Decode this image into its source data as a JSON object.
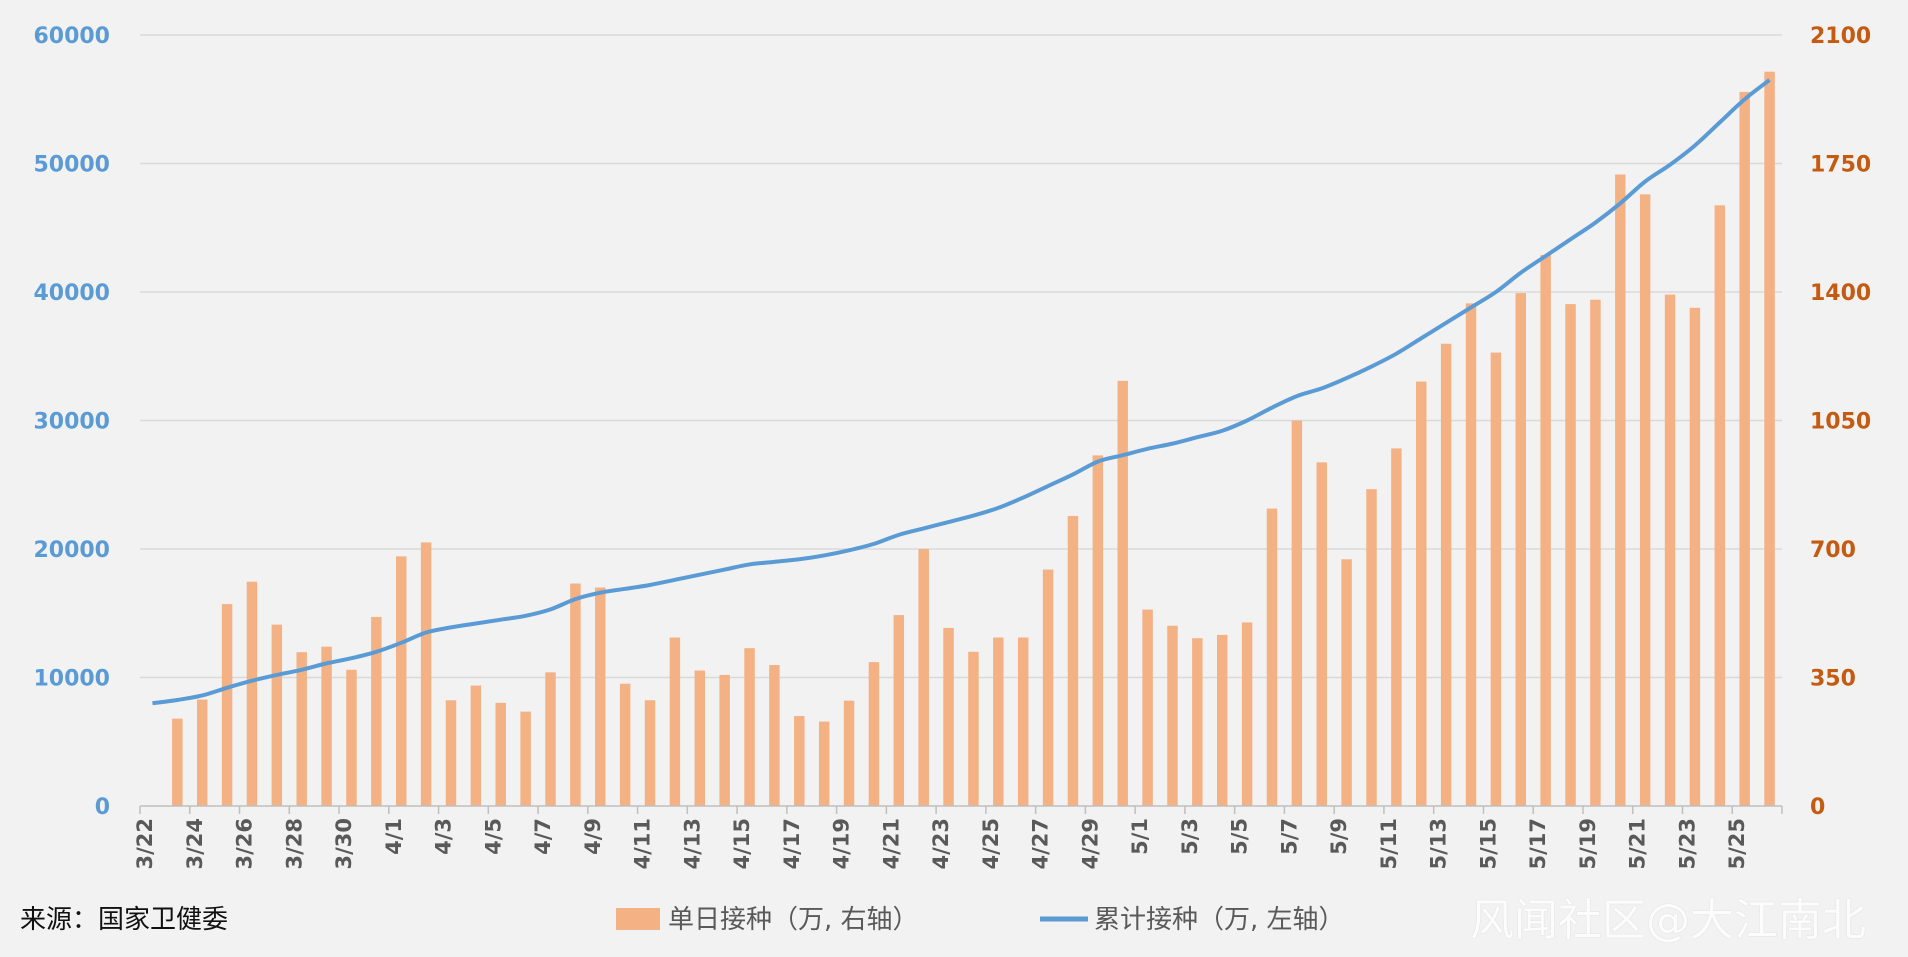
{
  "chart_data": {
    "type": "bar+line",
    "categories": [
      "3/22",
      "3/23",
      "3/24",
      "3/25",
      "3/26",
      "3/27",
      "3/28",
      "3/29",
      "3/30",
      "3/31",
      "4/1",
      "4/2",
      "4/3",
      "4/4",
      "4/5",
      "4/6",
      "4/7",
      "4/8",
      "4/9",
      "4/10",
      "4/11",
      "4/12",
      "4/13",
      "4/14",
      "4/15",
      "4/16",
      "4/17",
      "4/18",
      "4/19",
      "4/20",
      "4/21",
      "4/22",
      "4/23",
      "4/24",
      "4/25",
      "4/26",
      "4/27",
      "4/28",
      "4/29",
      "4/30",
      "5/1",
      "5/2",
      "5/3",
      "5/4",
      "5/5",
      "5/6",
      "5/7",
      "5/8",
      "5/9",
      "5/10",
      "5/11",
      "5/12",
      "5/13",
      "5/14",
      "5/15",
      "5/16",
      "5/17",
      "5/18",
      "5/19",
      "5/20",
      "5/21",
      "5/22",
      "5/23",
      "5/24",
      "5/25",
      "5/26"
    ],
    "x_tick_labels": [
      "3/22",
      "3/24",
      "3/26",
      "3/28",
      "3/30",
      "4/1",
      "4/3",
      "4/5",
      "4/7",
      "4/9",
      "4/11",
      "4/13",
      "4/15",
      "4/17",
      "4/19",
      "4/21",
      "4/23",
      "4/25",
      "4/27",
      "4/29",
      "5/1",
      "5/3",
      "5/5",
      "5/7",
      "5/9",
      "5/11",
      "5/13",
      "5/15",
      "5/17",
      "5/19",
      "5/21",
      "5/23",
      "5/25"
    ],
    "series": [
      {
        "name": "单日接种（万, 右轴）",
        "type": "bar",
        "axis": "right",
        "color": "#f4b183",
        "values": [
          null,
          238,
          290,
          550,
          611,
          494,
          419,
          434,
          371,
          515,
          680,
          718,
          288,
          328,
          281,
          257,
          364,
          606,
          595,
          333,
          288,
          459,
          369,
          357,
          430,
          384,
          245,
          230,
          287,
          392,
          520,
          700,
          485,
          420,
          459,
          459,
          644,
          790,
          955,
          1158,
          535,
          491,
          457,
          466,
          500,
          810,
          1050,
          936,
          672,
          863,
          974,
          1156,
          1259,
          1369,
          1235,
          1397,
          1501,
          1367,
          1379,
          1720,
          1666,
          1393,
          1357,
          1636,
          1945,
          2000
        ]
      },
      {
        "name": "累计接种（万, 左轴）",
        "type": "line",
        "axis": "left",
        "color": "#5b9bd5",
        "values": [
          8000,
          8250,
          8600,
          9200,
          9750,
          10200,
          10600,
          11100,
          11500,
          12000,
          12700,
          13500,
          13900,
          14200,
          14500,
          14800,
          15300,
          16100,
          16600,
          16900,
          17200,
          17600,
          18000,
          18400,
          18800,
          19000,
          19200,
          19500,
          19900,
          20400,
          21100,
          21600,
          22100,
          22600,
          23200,
          24000,
          24900,
          25800,
          26800,
          27300,
          27800,
          28200,
          28700,
          29200,
          30000,
          31000,
          31900,
          32500,
          33300,
          34200,
          35200,
          36400,
          37600,
          38800,
          40000,
          41500,
          42800,
          44100,
          45400,
          46900,
          48600,
          49900,
          51400,
          53200,
          55000,
          56500
        ]
      }
    ],
    "y_left": {
      "min": 0,
      "max": 60000,
      "ticks": [
        "0",
        "10000",
        "20000",
        "30000",
        "40000",
        "50000",
        "60000"
      ]
    },
    "y_right": {
      "min": 0,
      "max": 2100,
      "ticks": [
        "0",
        "350",
        "700",
        "1050",
        "1400",
        "1750",
        "2100"
      ]
    },
    "grid": true,
    "legend_position": "bottom",
    "colors": {
      "left_axis": "#5b9bd5",
      "right_axis": "#c55a11",
      "bar": "#f4b183",
      "line": "#5b9bd5",
      "grid": "#d9d9d9",
      "background": "#f2f2f2"
    }
  },
  "source_text": "来源：国家卫健委",
  "legend": {
    "bar_label": "单日接种（万, 右轴）",
    "line_label": "累计接种（万, 左轴）"
  },
  "watermark": "风闻社区@大江南北"
}
